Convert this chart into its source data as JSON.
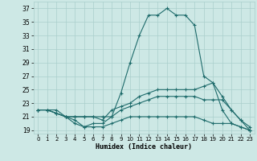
{
  "xlabel": "Humidex (Indice chaleur)",
  "xlim": [
    -0.5,
    23.5
  ],
  "ylim": [
    18.5,
    38
  ],
  "yticks": [
    19,
    21,
    23,
    25,
    27,
    29,
    31,
    33,
    35,
    37
  ],
  "xticks": [
    0,
    1,
    2,
    3,
    4,
    5,
    6,
    7,
    8,
    9,
    10,
    11,
    12,
    13,
    14,
    15,
    16,
    17,
    18,
    19,
    20,
    21,
    22,
    23
  ],
  "background_color": "#cde8e5",
  "grid_color": "#aacfcc",
  "line_color": "#1e6b6b",
  "lines": [
    {
      "x": [
        0,
        1,
        2,
        3,
        4,
        5,
        6,
        7,
        8,
        9,
        10,
        11,
        12,
        13,
        14,
        15,
        16,
        17,
        18,
        19,
        20,
        21,
        22,
        23
      ],
      "y": [
        22,
        22,
        21.5,
        21,
        20.5,
        19.5,
        20,
        20,
        21,
        24.5,
        29,
        33,
        36,
        36,
        37,
        36,
        36,
        34.5,
        27,
        26,
        22,
        20,
        19.5,
        19
      ]
    },
    {
      "x": [
        0,
        1,
        2,
        3,
        4,
        5,
        6,
        7,
        8,
        9,
        10,
        11,
        12,
        13,
        14,
        15,
        16,
        17,
        18,
        19,
        20,
        21,
        22,
        23
      ],
      "y": [
        22,
        22,
        22,
        21,
        21,
        21,
        21,
        20.5,
        22,
        22.5,
        23,
        24,
        24.5,
        25,
        25,
        25,
        25,
        25,
        25.5,
        26,
        24,
        22,
        20.5,
        19
      ]
    },
    {
      "x": [
        0,
        1,
        2,
        3,
        4,
        5,
        6,
        7,
        8,
        9,
        10,
        11,
        12,
        13,
        14,
        15,
        16,
        17,
        18,
        19,
        20,
        21,
        22,
        23
      ],
      "y": [
        22,
        22,
        21.5,
        21,
        21,
        21,
        21,
        21,
        21,
        22,
        22.5,
        23,
        23.5,
        24,
        24,
        24,
        24,
        24,
        23.5,
        23.5,
        23.5,
        22,
        20.5,
        19.5
      ]
    },
    {
      "x": [
        0,
        1,
        2,
        3,
        4,
        5,
        6,
        7,
        8,
        9,
        10,
        11,
        12,
        13,
        14,
        15,
        16,
        17,
        18,
        19,
        20,
        21,
        22,
        23
      ],
      "y": [
        22,
        22,
        21.5,
        21,
        20,
        19.5,
        19.5,
        19.5,
        20,
        20.5,
        21,
        21,
        21,
        21,
        21,
        21,
        21,
        21,
        20.5,
        20,
        20,
        20,
        19.5,
        19
      ]
    }
  ]
}
